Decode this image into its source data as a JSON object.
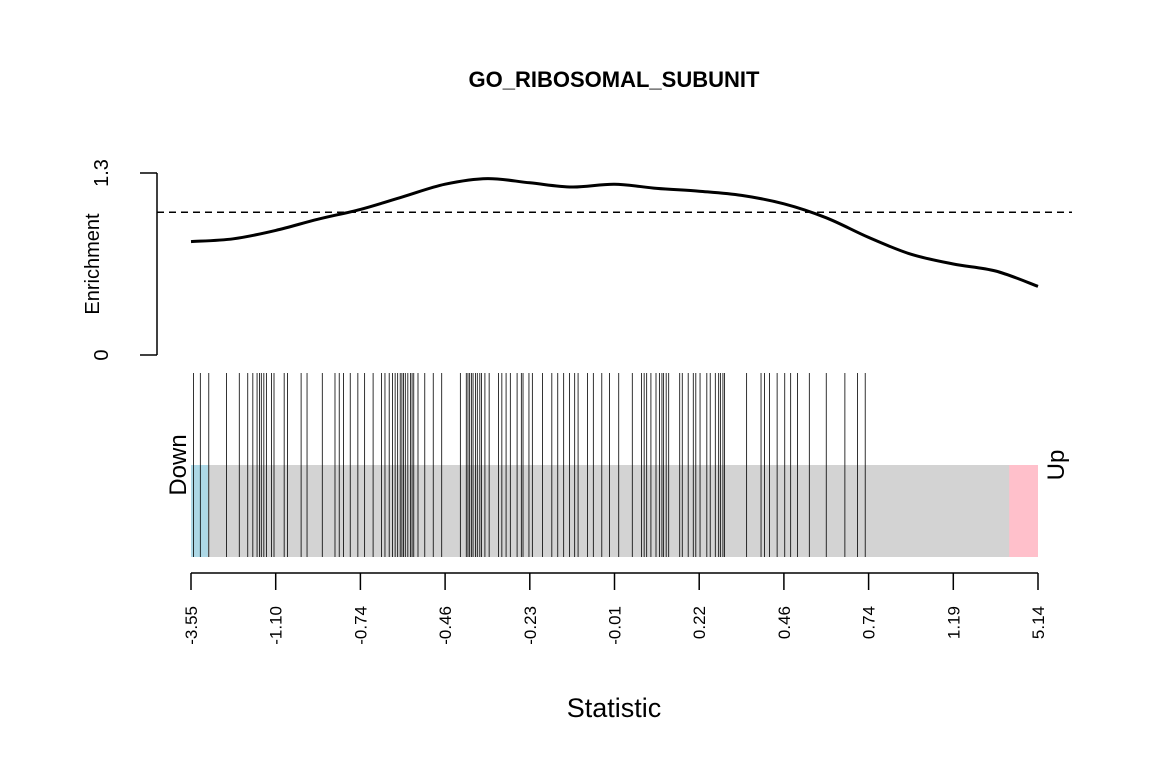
{
  "chart_data": {
    "type": "barcode-enrichment",
    "title": "GO_RIBOSOMAL_SUBUNIT",
    "xlabel": "Statistic",
    "enrichment": {
      "ylabel": "Enrichment",
      "yticks": [
        "0",
        "1.3"
      ],
      "ylim": [
        0,
        1.3
      ],
      "reference_line": 1.02,
      "curve": {
        "x": [
          0,
          0.05,
          0.1,
          0.15,
          0.2,
          0.25,
          0.3,
          0.35,
          0.4,
          0.45,
          0.5,
          0.55,
          0.6,
          0.65,
          0.7,
          0.75,
          0.8,
          0.85,
          0.9,
          0.95,
          1.0
        ],
        "y": [
          0.81,
          0.83,
          0.89,
          0.97,
          1.04,
          1.13,
          1.22,
          1.26,
          1.23,
          1.2,
          1.22,
          1.19,
          1.17,
          1.14,
          1.08,
          0.98,
          0.84,
          0.72,
          0.65,
          0.6,
          0.49
        ]
      }
    },
    "barcode": {
      "down_label": "Down",
      "up_label": "Up",
      "down_color": "#ADD8E6",
      "up_color": "#FFC0CB",
      "neutral_color": "#D3D3D3",
      "down_region": [
        0,
        0.02
      ],
      "up_region": [
        0.966,
        1.0
      ],
      "positions": [
        0.003,
        0.011,
        0.021,
        0.042,
        0.057,
        0.067,
        0.073,
        0.078,
        0.081,
        0.083,
        0.086,
        0.089,
        0.095,
        0.098,
        0.11,
        0.114,
        0.13,
        0.137,
        0.155,
        0.17,
        0.175,
        0.18,
        0.188,
        0.197,
        0.205,
        0.215,
        0.225,
        0.229,
        0.234,
        0.238,
        0.241,
        0.244,
        0.247,
        0.249,
        0.251,
        0.253,
        0.256,
        0.259,
        0.261,
        0.263,
        0.268,
        0.276,
        0.286,
        0.296,
        0.318,
        0.325,
        0.327,
        0.329,
        0.331,
        0.333,
        0.336,
        0.338,
        0.341,
        0.343,
        0.347,
        0.352,
        0.363,
        0.367,
        0.372,
        0.377,
        0.385,
        0.39,
        0.392,
        0.399,
        0.403,
        0.415,
        0.426,
        0.433,
        0.44,
        0.447,
        0.453,
        0.457,
        0.468,
        0.475,
        0.485,
        0.494,
        0.505,
        0.521,
        0.532,
        0.535,
        0.538,
        0.543,
        0.549,
        0.553,
        0.556,
        0.558,
        0.561,
        0.564,
        0.577,
        0.58,
        0.587,
        0.593,
        0.596,
        0.601,
        0.609,
        0.613,
        0.619,
        0.623,
        0.625,
        0.628,
        0.63,
        0.656,
        0.673,
        0.677,
        0.683,
        0.692,
        0.701,
        0.708,
        0.716,
        0.73,
        0.75,
        0.772,
        0.787,
        0.796
      ],
      "xtick_labels": [
        "-3.55",
        "-1.10",
        "-0.74",
        "-0.46",
        "-0.23",
        "-0.01",
        "0.22",
        "0.46",
        "0.74",
        "1.19",
        "5.14"
      ]
    }
  }
}
